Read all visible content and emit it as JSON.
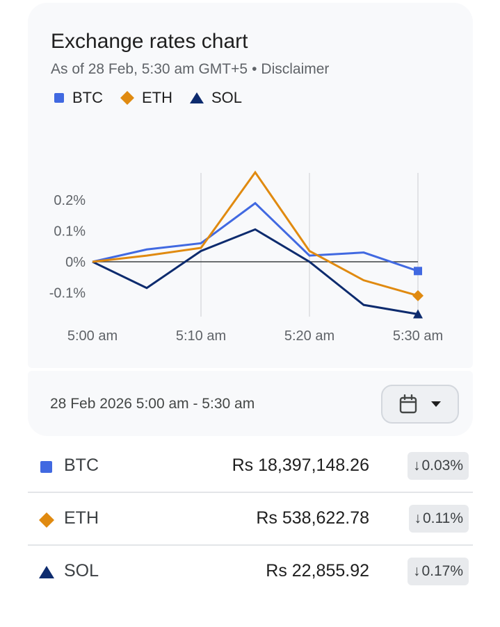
{
  "card": {
    "title": "Exchange rates chart",
    "as_of": "As of 28 Feb, 5:30 am GMT+5",
    "separator": "•",
    "disclaimer": "Disclaimer"
  },
  "legend": [
    {
      "label": "BTC",
      "marker": "square",
      "color": "#4169e1"
    },
    {
      "label": "ETH",
      "marker": "diamond",
      "color": "#e08a10"
    },
    {
      "label": "SOL",
      "marker": "triangle",
      "color": "#0d2b6e"
    }
  ],
  "chart_data": {
    "type": "line",
    "x": [
      "5:00 am",
      "5:05 am",
      "5:10 am",
      "5:15 am",
      "5:20 am",
      "5:25 am",
      "5:30 am"
    ],
    "x_tick_labels": [
      "5:00 am",
      "5:10 am",
      "5:20 am",
      "5:30 am"
    ],
    "y_tick_labels": [
      "0.2%",
      "0.1%",
      "0%",
      "-0.1%"
    ],
    "y_ticks": [
      0.2,
      0.1,
      0,
      -0.1
    ],
    "ylim": [
      -0.2,
      0.3
    ],
    "grid": "vertical",
    "series": [
      {
        "name": "BTC",
        "color": "#4169e1",
        "values": [
          0,
          0.04,
          0.06,
          0.19,
          0.02,
          0.03,
          -0.03
        ]
      },
      {
        "name": "ETH",
        "color": "#e08a10",
        "values": [
          0,
          0.02,
          0.045,
          0.29,
          0.035,
          -0.06,
          -0.11
        ]
      },
      {
        "name": "SOL",
        "color": "#0d2b6e",
        "values": [
          0,
          -0.085,
          0.035,
          0.105,
          0,
          -0.14,
          -0.17
        ]
      }
    ]
  },
  "range": {
    "text": "28 Feb 2026 5:00 am - 5:30 am"
  },
  "rows": [
    {
      "symbol": "BTC",
      "price": "Rs 18,397,148.26",
      "arrow": "↓",
      "change": "0.03%"
    },
    {
      "symbol": "ETH",
      "price": "Rs 538,622.78",
      "arrow": "↓",
      "change": "0.11%"
    },
    {
      "symbol": "SOL",
      "price": "Rs 22,855.92",
      "arrow": "↓",
      "change": "0.17%"
    }
  ]
}
